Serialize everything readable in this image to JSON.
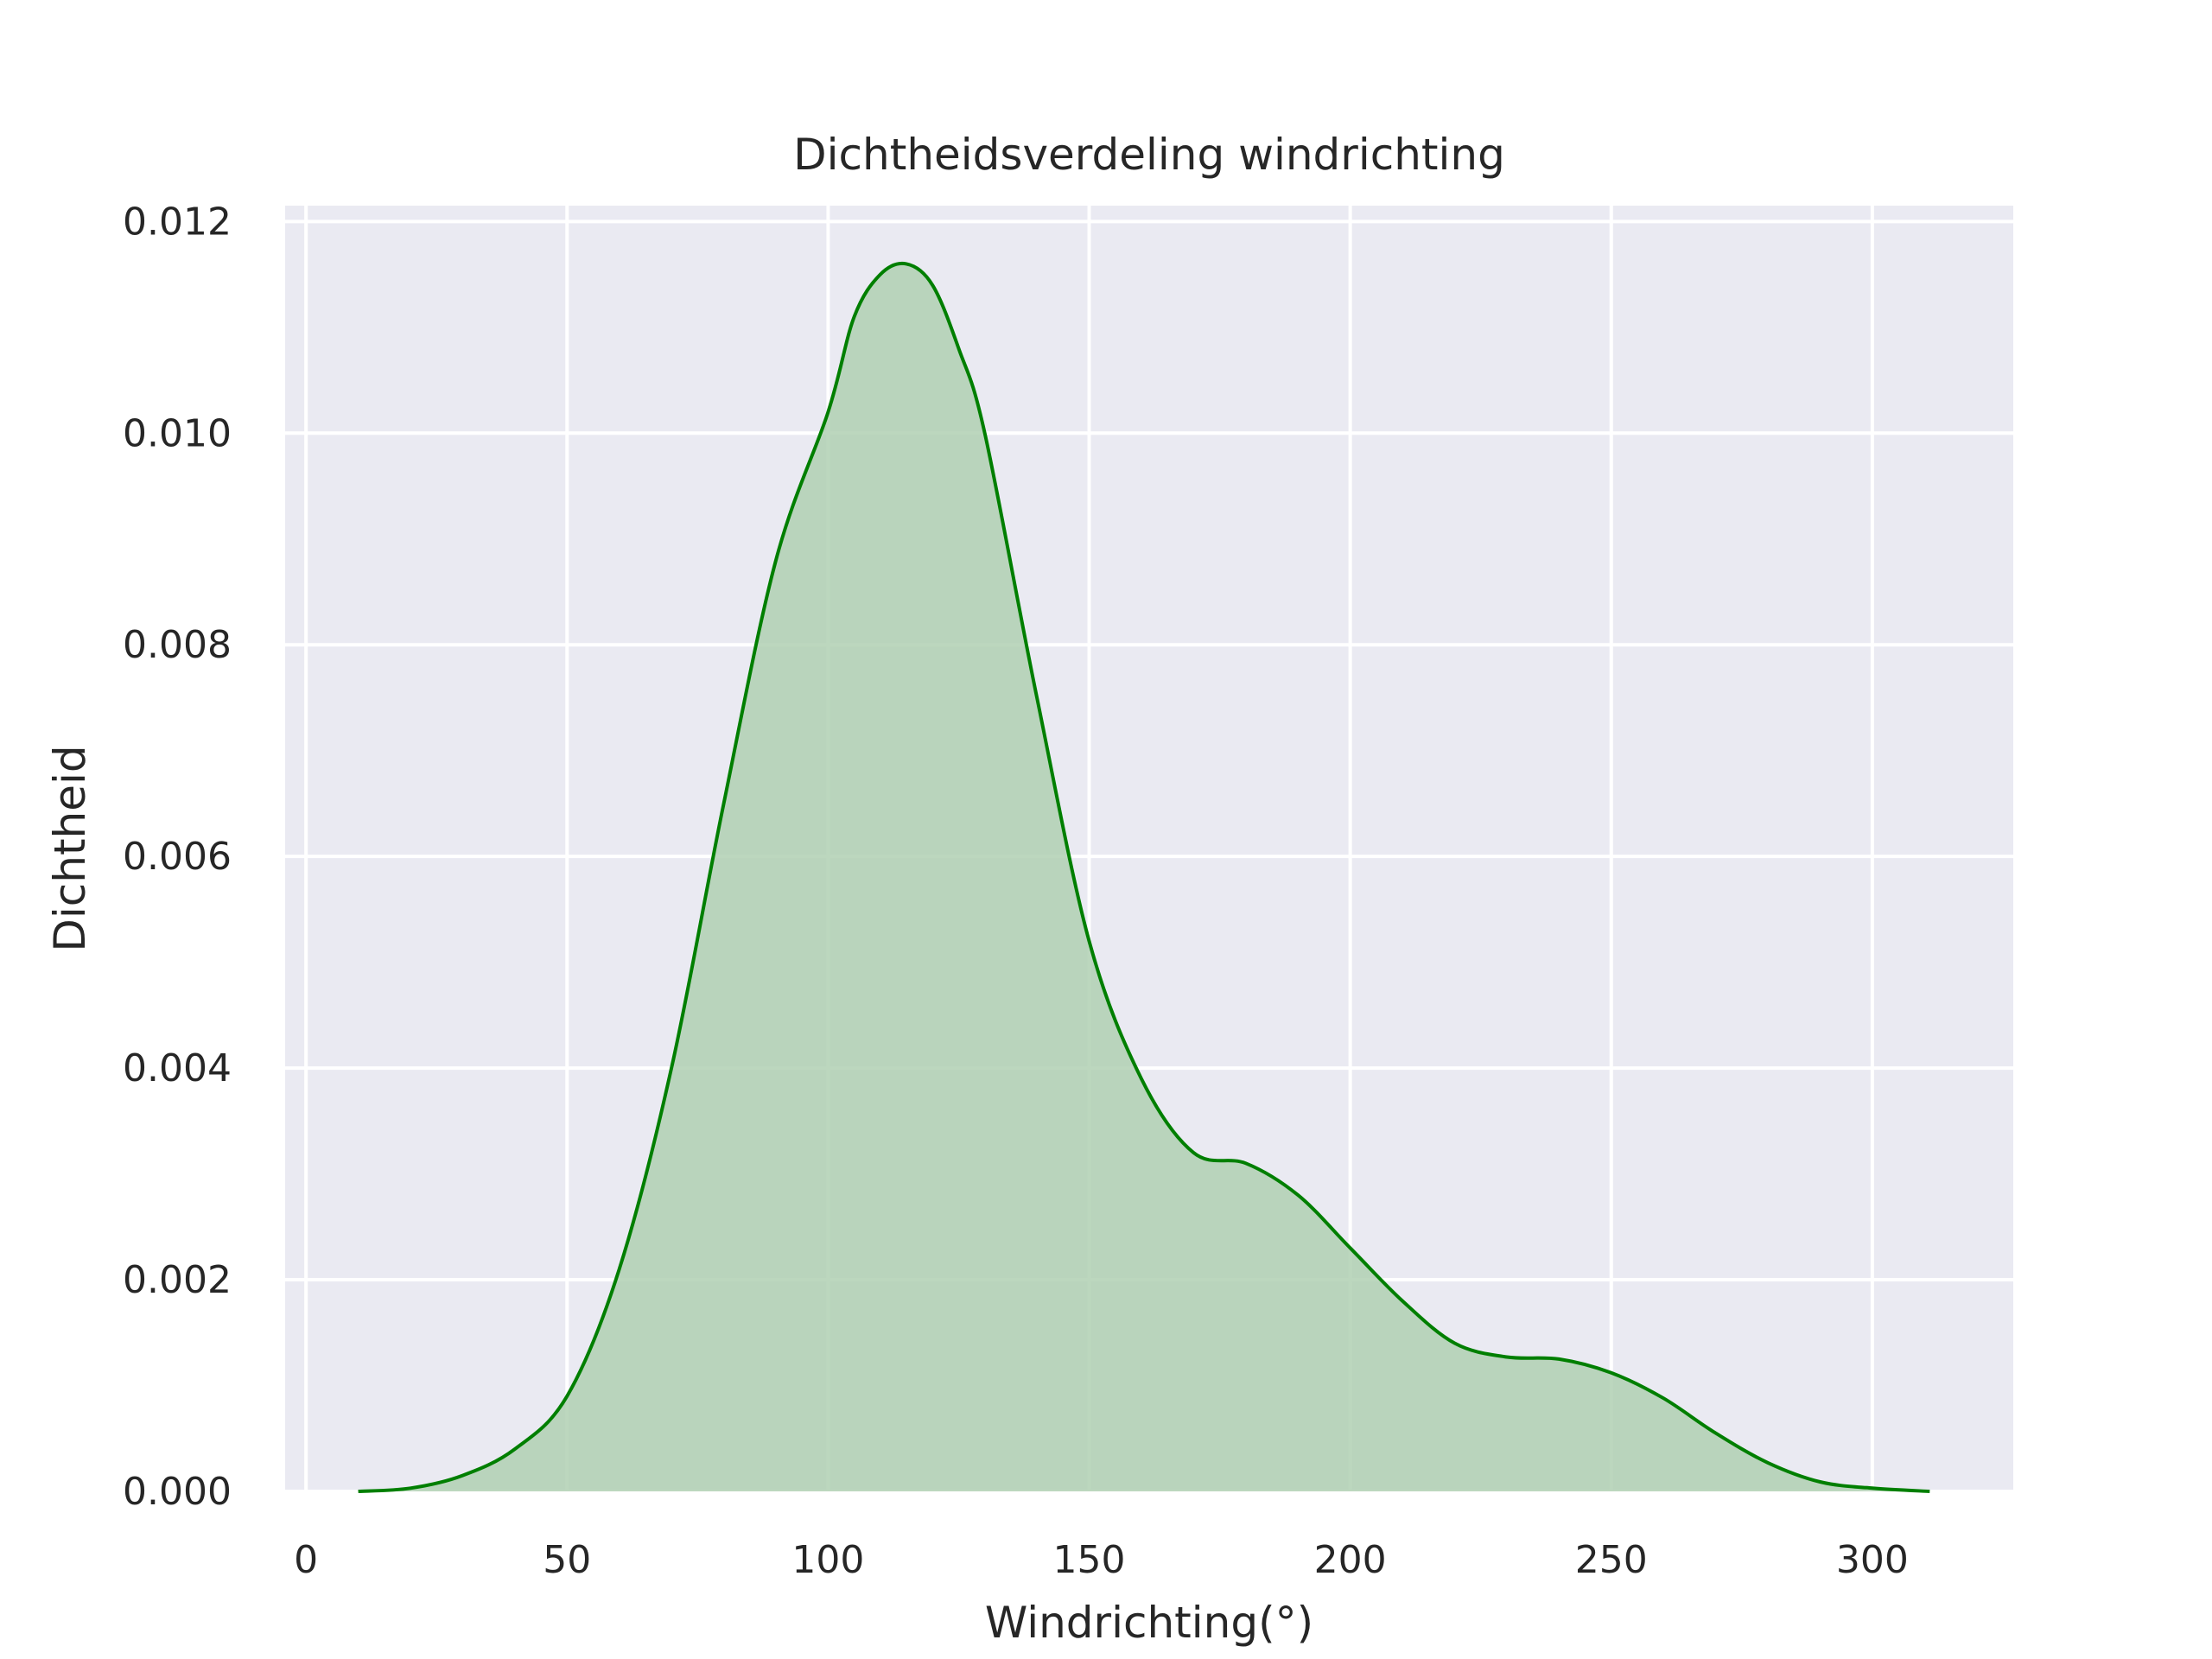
{
  "chart_data": {
    "type": "area",
    "title": "Dichtheidsverdeling windrichting",
    "xlabel": "Windrichting(°)",
    "ylabel": "Dichtheid",
    "xlim": [
      -4,
      327
    ],
    "ylim": [
      0,
      0.01215
    ],
    "x_ticks": [
      0,
      50,
      100,
      150,
      200,
      250,
      300
    ],
    "x_tick_labels": [
      "0",
      "50",
      "100",
      "150",
      "200",
      "250",
      "300"
    ],
    "y_ticks": [
      0,
      0.002,
      0.004,
      0.006,
      0.008,
      0.01,
      0.012
    ],
    "y_tick_labels": [
      "0.000",
      "0.002",
      "0.004",
      "0.006",
      "0.008",
      "0.010",
      "0.012"
    ],
    "grid": true,
    "colors": {
      "background": "#eaeaf2",
      "grid": "#ffffff",
      "line": "#007f00",
      "fill": "#b0d0b3"
    },
    "series": [
      {
        "x": [
          10,
          20,
          30,
          40,
          50,
          60,
          70,
          80,
          90,
          100,
          105,
          110,
          115,
          120,
          125,
          130,
          140,
          150,
          160,
          170,
          180,
          190,
          200,
          210,
          220,
          230,
          240,
          250,
          260,
          270,
          280,
          290,
          300,
          311
        ],
        "y": [
          0.0,
          3e-05,
          0.00015,
          0.0004,
          0.0009,
          0.0021,
          0.004,
          0.0065,
          0.0088,
          0.0102,
          0.0111,
          0.0115,
          0.0116,
          0.0114,
          0.0108,
          0.01,
          0.0075,
          0.0052,
          0.0039,
          0.0032,
          0.0031,
          0.0028,
          0.0023,
          0.0018,
          0.0014,
          0.00127,
          0.00125,
          0.00112,
          0.00088,
          0.00055,
          0.00027,
          9e-05,
          3e-05,
          0.0
        ]
      }
    ]
  }
}
